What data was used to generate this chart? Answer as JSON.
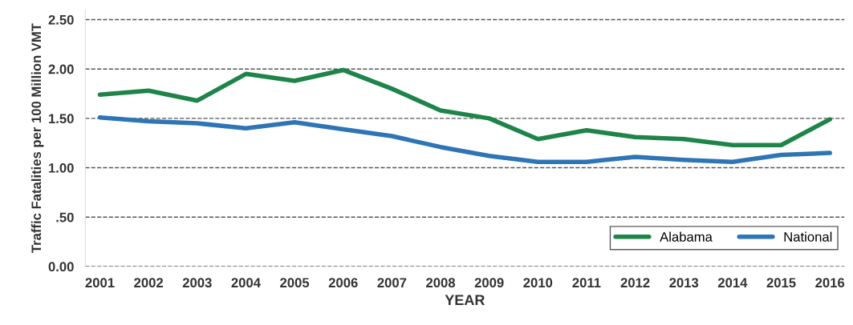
{
  "chart_data": {
    "type": "line",
    "xlabel": "YEAR",
    "ylabel": "Traffic Fatalities per 100 Million VMT",
    "categories": [
      "2001",
      "2002",
      "2003",
      "2004",
      "2005",
      "2006",
      "2007",
      "2008",
      "2009",
      "2010",
      "2011",
      "2012",
      "2013",
      "2014",
      "2015",
      "2016"
    ],
    "series": [
      {
        "name": "Alabama",
        "color": "#1e8449",
        "values": [
          1.74,
          1.78,
          1.68,
          1.95,
          1.88,
          1.99,
          1.8,
          1.58,
          1.5,
          1.29,
          1.38,
          1.31,
          1.29,
          1.23,
          1.23,
          1.49
        ]
      },
      {
        "name": "National",
        "color": "#2e75b6",
        "values": [
          1.51,
          1.47,
          1.45,
          1.4,
          1.46,
          1.39,
          1.32,
          1.21,
          1.12,
          1.06,
          1.06,
          1.11,
          1.08,
          1.06,
          1.13,
          1.15
        ]
      }
    ],
    "ylim": [
      0,
      2.6
    ],
    "yticks": [
      {
        "value": 0,
        "label": "0.00"
      },
      {
        "value": 0.5,
        "label": ".50"
      },
      {
        "value": 1,
        "label": "1.00"
      },
      {
        "value": 1.5,
        "label": "1.50"
      },
      {
        "value": 2,
        "label": "2.00"
      },
      {
        "value": 2.5,
        "label": "2.50"
      }
    ],
    "grid": "y",
    "legend": "bottom right",
    "line_style": "solid",
    "marker": "none"
  }
}
